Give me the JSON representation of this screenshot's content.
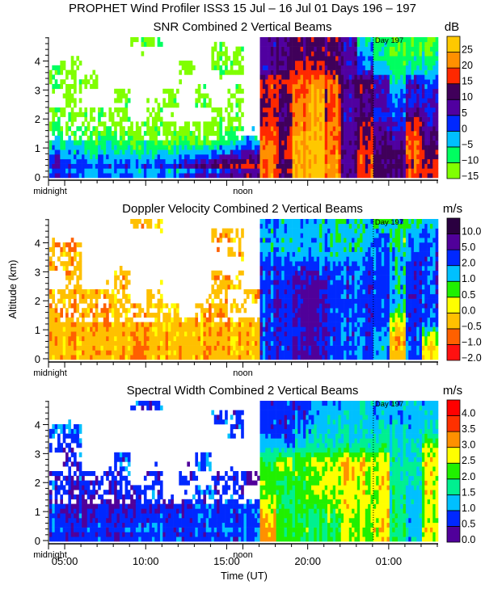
{
  "title": "PROPHET Wind Profiler ISS3  15 Jul – 16 Jul 01 Days 196 – 197",
  "yaxis_label": "Altitude (km)",
  "xaxis_label": "Time (UT)",
  "x_tick_labels": [
    "05:00",
    "10:00",
    "15:00",
    "20:00",
    "01:00"
  ],
  "midnight_label": "midnight",
  "noon_label": "noon",
  "day_marker": "Day 197",
  "y_tick_labels": [
    "0",
    "1",
    "2",
    "3",
    "4"
  ],
  "chart_data": [
    {
      "type": "heatmap",
      "title": "SNR Combined 2 Vertical Beams",
      "unit": "dB",
      "x_label": "Time (UT)",
      "y_label": "Altitude (km)",
      "x_hours_since_local_midnight": [
        0.5,
        1.5,
        2.5,
        3.5,
        4.5,
        5.5,
        6.5,
        7.5,
        8.5,
        9.5,
        10.5,
        11.5,
        12.5,
        13.5,
        14.5,
        15.5,
        16.5,
        17.5,
        18.5,
        19.5,
        20.5,
        21.5,
        22.5,
        23.5
      ],
      "y_altitude_km": [
        0.25,
        0.75,
        1.25,
        1.75,
        2.25,
        2.75,
        3.25,
        3.75,
        4.25,
        4.75
      ],
      "colorbar_levels": [
        -15,
        -10,
        -5,
        0,
        5,
        10,
        15,
        20,
        25
      ],
      "colorbar_labels": [
        "−15",
        "−10",
        "−5",
        "0",
        "5",
        "10",
        "15",
        "20",
        "25"
      ],
      "colors": [
        "#80ff00",
        "#00ff60",
        "#00c0ff",
        "#0028ff",
        "#5000a0",
        "#40005a",
        "#ff2800",
        "#ff9000",
        "#ffc800"
      ],
      "values": [
        [
          8,
          5,
          3,
          3,
          5,
          3,
          5,
          5,
          10,
          15,
          17,
          18,
          18,
          20,
          12,
          25,
          26,
          22,
          10,
          18,
          12,
          10,
          15,
          15
        ],
        [
          2,
          0,
          -3,
          -3,
          -2,
          -3,
          -3,
          -2,
          0,
          2,
          2,
          5,
          8,
          22,
          15,
          25,
          26,
          22,
          10,
          18,
          12,
          10,
          20,
          15
        ],
        [
          -5,
          -5,
          -8,
          -8,
          -10,
          -10,
          -10,
          -10,
          -10,
          -10,
          -8,
          -5,
          -3,
          20,
          15,
          25,
          26,
          20,
          10,
          15,
          10,
          8,
          20,
          10
        ],
        [
          -10,
          -10,
          -12,
          -12,
          -13,
          -13,
          -13,
          -13,
          -13,
          -13,
          -13,
          -13,
          null,
          18,
          12,
          22,
          25,
          20,
          8,
          15,
          8,
          5,
          18,
          8
        ],
        [
          -13,
          -12,
          -12,
          -13,
          -13,
          null,
          -13,
          null,
          null,
          null,
          -13,
          -13,
          null,
          15,
          12,
          22,
          25,
          18,
          8,
          10,
          5,
          2,
          8,
          5
        ],
        [
          null,
          -13,
          null,
          null,
          -13,
          null,
          null,
          -13,
          null,
          -12,
          null,
          -13,
          null,
          15,
          12,
          20,
          25,
          18,
          8,
          10,
          5,
          0,
          5,
          5
        ],
        [
          -12,
          -10,
          -13,
          null,
          null,
          null,
          null,
          null,
          null,
          null,
          null,
          null,
          null,
          18,
          17,
          20,
          22,
          20,
          10,
          15,
          8,
          -5,
          8,
          2
        ],
        [
          -10,
          -12,
          null,
          null,
          null,
          null,
          null,
          null,
          -13,
          null,
          -12,
          -13,
          null,
          8,
          12,
          15,
          15,
          12,
          8,
          2,
          -3,
          -8,
          -5,
          -5
        ],
        [
          null,
          null,
          null,
          null,
          null,
          null,
          null,
          null,
          null,
          null,
          -13,
          -12,
          null,
          8,
          10,
          12,
          12,
          12,
          8,
          0,
          -5,
          -10,
          -8,
          -8
        ],
        [
          null,
          null,
          null,
          null,
          null,
          -13,
          -13,
          null,
          null,
          null,
          null,
          null,
          null,
          8,
          10,
          12,
          12,
          12,
          8,
          -5,
          -8,
          -10,
          -8,
          -10
        ]
      ]
    },
    {
      "type": "heatmap",
      "title": "Doppler Velocity Combined 2 Vertical Beams",
      "unit": "m/s",
      "x_label": "Time (UT)",
      "y_label": "Altitude (km)",
      "x_hours_since_local_midnight": [
        0.5,
        1.5,
        2.5,
        3.5,
        4.5,
        5.5,
        6.5,
        7.5,
        8.5,
        9.5,
        10.5,
        11.5,
        12.5,
        13.5,
        14.5,
        15.5,
        16.5,
        17.5,
        18.5,
        19.5,
        20.5,
        21.5,
        22.5,
        23.5
      ],
      "y_altitude_km": [
        0.25,
        0.75,
        1.25,
        1.75,
        2.25,
        2.75,
        3.25,
        3.75,
        4.25,
        4.75
      ],
      "colorbar_levels": [
        -2.0,
        -1.0,
        -0.5,
        0.0,
        0.5,
        1.0,
        2.0,
        5.0,
        10.0
      ],
      "colorbar_labels": [
        "−2.0",
        "−1.0",
        "−0.5",
        "0.0",
        "0.5",
        "1.0",
        "2.0",
        "5.0",
        "10.0"
      ],
      "colors": [
        "#ff1010",
        "#ff6000",
        "#ffc000",
        "#ffff00",
        "#20f000",
        "#00c0ff",
        "#0028ff",
        "#50009a",
        "#2a0040"
      ],
      "values": [
        [
          -0.2,
          -0.3,
          -0.3,
          -0.3,
          -0.3,
          -0.4,
          -0.4,
          -0.4,
          -0.3,
          -0.3,
          -0.4,
          -0.3,
          -0.2,
          3,
          4,
          6,
          6,
          3,
          3,
          3,
          1.5,
          -0.3,
          1.5,
          -0.2
        ],
        [
          -0.2,
          -0.3,
          -0.3,
          -0.3,
          -0.3,
          -0.4,
          -0.4,
          -0.3,
          -0.3,
          -0.3,
          -0.3,
          -0.2,
          -0.2,
          3,
          4,
          6,
          6,
          4,
          3,
          3,
          1.5,
          -0.2,
          2.5,
          0.3
        ],
        [
          -0.2,
          -0.3,
          -0.3,
          -0.3,
          -0.3,
          -0.3,
          -0.4,
          -0.3,
          -0.2,
          -0.3,
          -0.3,
          -0.3,
          -0.3,
          3,
          4,
          6,
          6,
          4,
          3,
          3,
          2.5,
          0.3,
          3,
          3
        ],
        [
          -0.2,
          -0.3,
          -0.3,
          -0.4,
          -0.3,
          -0.3,
          -0.2,
          -0.2,
          null,
          -0.3,
          -0.2,
          -0.3,
          null,
          3,
          4,
          6,
          6,
          4,
          3,
          3,
          3,
          1.2,
          3,
          3
        ],
        [
          -0.3,
          -0.3,
          -0.3,
          -0.2,
          -0.3,
          null,
          -0.2,
          null,
          null,
          null,
          -0.3,
          null,
          -0.3,
          3,
          4,
          6,
          6,
          4,
          3,
          3,
          3,
          1.5,
          3,
          3
        ],
        [
          null,
          -0.3,
          null,
          null,
          -0.3,
          null,
          null,
          null,
          null,
          null,
          -0.3,
          -0.3,
          null,
          3,
          4,
          6,
          6,
          4,
          3,
          3,
          3,
          1.5,
          3,
          3
        ],
        [
          -0.2,
          -0.3,
          null,
          null,
          null,
          null,
          null,
          null,
          null,
          null,
          null,
          null,
          null,
          3,
          3,
          3,
          3,
          3,
          3,
          3,
          3,
          1.5,
          3,
          3
        ],
        [
          -0.3,
          -0.4,
          null,
          null,
          null,
          null,
          null,
          null,
          null,
          null,
          null,
          -0.3,
          null,
          1.5,
          1.5,
          1.5,
          1.5,
          1.5,
          1.5,
          1.5,
          2.5,
          1.5,
          1.5,
          3
        ],
        [
          null,
          null,
          null,
          null,
          null,
          null,
          null,
          null,
          null,
          null,
          -0.3,
          -0.3,
          null,
          1.5,
          1.5,
          1.5,
          1.5,
          1.5,
          1.5,
          1.2,
          2.5,
          0.8,
          1.5,
          3
        ],
        [
          null,
          null,
          null,
          null,
          null,
          -0.3,
          -0.3,
          null,
          null,
          null,
          null,
          null,
          null,
          1.5,
          1.5,
          1.5,
          1.5,
          1.5,
          1.5,
          1.5,
          0.8,
          1.5,
          0.8,
          1.5
        ]
      ]
    },
    {
      "type": "heatmap",
      "title": "Spectral Width Combined 2 Vertical Beams",
      "unit": "m/s",
      "x_label": "Time (UT)",
      "y_label": "Altitude (km)",
      "x_hours_since_local_midnight": [
        0.5,
        1.5,
        2.5,
        3.5,
        4.5,
        5.5,
        6.5,
        7.5,
        8.5,
        9.5,
        10.5,
        11.5,
        12.5,
        13.5,
        14.5,
        15.5,
        16.5,
        17.5,
        18.5,
        19.5,
        20.5,
        21.5,
        22.5,
        23.5
      ],
      "y_altitude_km": [
        0.25,
        0.75,
        1.25,
        1.75,
        2.25,
        2.75,
        3.25,
        3.75,
        4.25,
        4.75
      ],
      "colorbar_levels": [
        0.0,
        0.5,
        1.0,
        1.5,
        2.0,
        2.5,
        3.0,
        3.5,
        4.0
      ],
      "colorbar_labels": [
        "0.0",
        "0.5",
        "1.0",
        "1.5",
        "2.0",
        "2.5",
        "3.0",
        "3.5",
        "4.0"
      ],
      "colors": [
        "#50009a",
        "#0028ff",
        "#00c0ff",
        "#00f090",
        "#20f000",
        "#ffff00",
        "#ff9000",
        "#ff3000",
        "#ff0000"
      ],
      "values": [
        [
          1.0,
          1.0,
          0.8,
          0.8,
          1.0,
          1.0,
          1.0,
          1.0,
          1.0,
          1.0,
          1.0,
          1.0,
          1.0,
          3.2,
          2.2,
          2.2,
          2.0,
          2.2,
          2.5,
          2.5,
          3.0,
          2.0,
          1.2,
          3.0
        ],
        [
          0.8,
          0.6,
          0.6,
          0.6,
          0.5,
          0.6,
          0.7,
          0.7,
          0.7,
          0.7,
          0.7,
          0.7,
          1.0,
          3.0,
          2.2,
          2.0,
          2.0,
          2.2,
          2.5,
          2.5,
          2.7,
          1.8,
          1.2,
          2.5
        ],
        [
          0.6,
          0.5,
          0.4,
          0.4,
          0.4,
          0.5,
          0.6,
          0.6,
          0.7,
          0.7,
          0.7,
          0.7,
          1.0,
          2.5,
          2.0,
          2.2,
          2.2,
          2.5,
          2.7,
          2.7,
          2.7,
          1.8,
          1.2,
          2.5
        ],
        [
          0.7,
          0.6,
          0.6,
          0.6,
          0.5,
          0.6,
          0.7,
          null,
          null,
          0.7,
          0.7,
          0.7,
          null,
          2.2,
          2.0,
          2.2,
          2.5,
          2.7,
          2.7,
          2.7,
          2.7,
          1.7,
          1.2,
          2.7
        ],
        [
          0.7,
          0.7,
          0.7,
          0.7,
          0.7,
          null,
          0.7,
          null,
          0.7,
          null,
          0.7,
          0.7,
          0.4,
          2.2,
          2.2,
          2.2,
          2.5,
          2.7,
          3.0,
          2.7,
          2.7,
          1.7,
          1.5,
          2.7
        ],
        [
          null,
          0.7,
          null,
          null,
          0.8,
          null,
          null,
          null,
          null,
          0.7,
          null,
          null,
          null,
          2.0,
          2.7,
          2.2,
          2.7,
          2.7,
          3.0,
          3.0,
          2.7,
          1.7,
          1.5,
          2.7
        ],
        [
          0.8,
          0.7,
          null,
          null,
          null,
          null,
          null,
          null,
          null,
          null,
          null,
          null,
          null,
          1.2,
          1.2,
          1.5,
          1.7,
          1.7,
          1.7,
          1.8,
          1.8,
          1.5,
          1.3,
          2.5
        ],
        [
          1.0,
          1.0,
          null,
          null,
          null,
          null,
          null,
          null,
          null,
          null,
          null,
          0.8,
          null,
          0.7,
          0.7,
          1.2,
          1.5,
          1.5,
          1.5,
          1.5,
          1.5,
          1.5,
          1.2,
          1.5
        ],
        [
          null,
          null,
          null,
          null,
          null,
          null,
          null,
          null,
          null,
          null,
          0.8,
          0.8,
          null,
          0.7,
          0.7,
          0.7,
          1.2,
          1.5,
          1.3,
          1.5,
          1.3,
          1.2,
          1.2,
          1.3
        ],
        [
          null,
          null,
          null,
          null,
          null,
          0.7,
          0.7,
          null,
          null,
          null,
          null,
          null,
          null,
          0.7,
          0.7,
          0.7,
          1.2,
          1.2,
          1.2,
          1.5,
          1.2,
          1.2,
          1.2,
          1.2
        ]
      ]
    }
  ]
}
